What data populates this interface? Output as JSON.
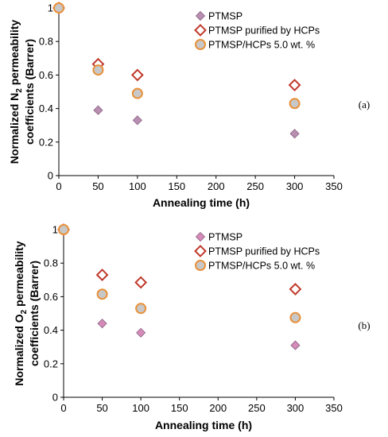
{
  "chart_data": [
    {
      "type": "scatter",
      "panel_label": "(a)",
      "ylabel_line1_pre": "Normalized N",
      "ylabel_line1_sub": "2",
      "ylabel_line1_post": " permeability",
      "ylabel_line2": "coefficients (Barrer)",
      "xlabel": "Annealing time (h)",
      "xlim": [
        0,
        350
      ],
      "ylim": [
        0,
        1
      ],
      "xticks": [
        "0",
        "50",
        "100",
        "150",
        "200",
        "250",
        "300",
        "350"
      ],
      "yticks": [
        "0",
        "0.2",
        "0.4",
        "0.6",
        "0.8",
        "1"
      ],
      "grid": false,
      "legend_position": "top-right",
      "series": [
        {
          "name": "PTMSP",
          "marker": "diamond-filled",
          "color": "#b07fa6",
          "points": [
            [
              0,
              1.0
            ],
            [
              50,
              0.39
            ],
            [
              100,
              0.33
            ],
            [
              300,
              0.25
            ]
          ]
        },
        {
          "name": "PTMSP purified by HCPs",
          "marker": "diamond-open",
          "color": "#c0392b",
          "points": [
            [
              0,
              1.0
            ],
            [
              50,
              0.665
            ],
            [
              100,
              0.6
            ],
            [
              300,
              0.54
            ]
          ]
        },
        {
          "name": "PTMSP/HCPs 5.0 wt. %",
          "marker": "circle",
          "color": "#e8913a",
          "points": [
            [
              0,
              1.0
            ],
            [
              50,
              0.63
            ],
            [
              100,
              0.49
            ],
            [
              300,
              0.43
            ]
          ]
        }
      ]
    },
    {
      "type": "scatter",
      "panel_label": "(b)",
      "ylabel_line1_pre": "Normalized O",
      "ylabel_line1_sub": "2",
      "ylabel_line1_post": " permeability",
      "ylabel_line2": "coefficients (Barrer)",
      "xlabel": "Annealing time (h)",
      "xlim": [
        0,
        350
      ],
      "ylim": [
        0,
        1
      ],
      "xticks": [
        "0",
        "50",
        "100",
        "150",
        "200",
        "250",
        "300",
        "350"
      ],
      "yticks": [
        "0",
        "0.2",
        "0.4",
        "0.6",
        "0.8",
        "1"
      ],
      "grid": false,
      "legend_position": "top-right",
      "series": [
        {
          "name": "PTMSP",
          "marker": "diamond-filled",
          "color": "#b07fa6",
          "points": [
            [
              0,
              1.0
            ],
            [
              50,
              0.44
            ],
            [
              100,
              0.385
            ],
            [
              300,
              0.31
            ]
          ]
        },
        {
          "name": "PTMSP purified by HCPs",
          "marker": "diamond-open",
          "color": "#c0392b",
          "points": [
            [
              0,
              1.0
            ],
            [
              50,
              0.73
            ],
            [
              100,
              0.685
            ],
            [
              300,
              0.645
            ]
          ]
        },
        {
          "name": "PTMSP/HCPs 5.0 wt. %",
          "marker": "circle",
          "color": "#e8913a",
          "points": [
            [
              0,
              1.0
            ],
            [
              50,
              0.615
            ],
            [
              100,
              0.53
            ],
            [
              300,
              0.475
            ]
          ]
        }
      ]
    }
  ],
  "colors": {
    "circle_fill": "#c8c8c8",
    "diamond_fill_a": "#b88fb0",
    "diamond_fill_b": "#d58ab8"
  }
}
